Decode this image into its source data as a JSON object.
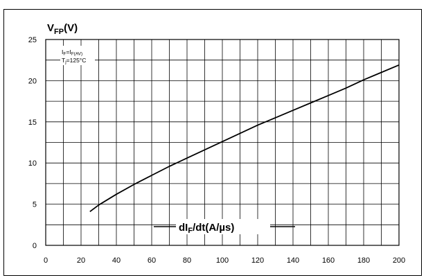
{
  "chart_data": {
    "type": "line",
    "ylabel": "VFP(V)",
    "ylabel_main": "V",
    "ylabel_sub": "FP",
    "ylabel_unit": "(V)",
    "xlabel": "dIF/dt(A/µs)",
    "xlabel_pre": "dI",
    "xlabel_sub": "F",
    "xlabel_post": "/dt(A/µs)",
    "condition1": "IF=IF(AV)",
    "condition2": "Tj=125°C",
    "xlim": [
      0,
      200
    ],
    "ylim": [
      0,
      25
    ],
    "x_ticks": [
      0,
      20,
      40,
      60,
      80,
      100,
      120,
      140,
      160,
      180,
      200
    ],
    "y_ticks": [
      0,
      5,
      10,
      15,
      20,
      25
    ],
    "x_minor_step": 10,
    "y_minor_step": 2.5,
    "grid": true,
    "series": [
      {
        "x": [
          25,
          30,
          40,
          50,
          60,
          70,
          80,
          90,
          100,
          110,
          120,
          130,
          140,
          150,
          160,
          170,
          180,
          190,
          200
        ],
        "y": [
          4.1,
          4.9,
          6.2,
          7.4,
          8.5,
          9.6,
          10.6,
          11.6,
          12.6,
          13.6,
          14.6,
          15.5,
          16.4,
          17.3,
          18.2,
          19.1,
          20.1,
          21.0,
          21.9
        ]
      }
    ]
  }
}
